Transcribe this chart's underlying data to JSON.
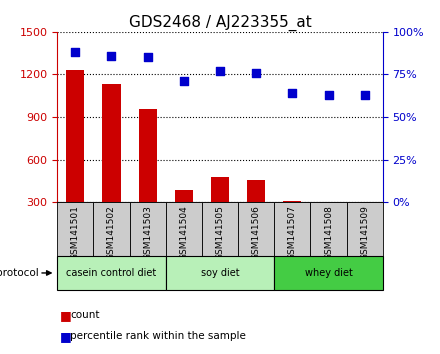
{
  "title": "GDS2468 / AJ223355_at",
  "samples": [
    "GSM141501",
    "GSM141502",
    "GSM141503",
    "GSM141504",
    "GSM141505",
    "GSM141506",
    "GSM141507",
    "GSM141508",
    "GSM141509"
  ],
  "counts": [
    1230,
    1130,
    960,
    390,
    480,
    460,
    310,
    305,
    300
  ],
  "percentile_ranks": [
    88,
    86,
    85,
    71,
    77,
    76,
    64,
    63,
    63
  ],
  "ylim_left": [
    300,
    1500
  ],
  "ylim_right": [
    0,
    100
  ],
  "yticks_left": [
    300,
    600,
    900,
    1200,
    1500
  ],
  "yticks_right": [
    0,
    25,
    50,
    75,
    100
  ],
  "bar_color": "#cc0000",
  "dot_color": "#0000cc",
  "group_spans": [
    {
      "start": 0,
      "end": 3,
      "color": "#b8f0b8",
      "label": "casein control diet"
    },
    {
      "start": 3,
      "end": 6,
      "color": "#b8f0b8",
      "label": "soy diet"
    },
    {
      "start": 6,
      "end": 9,
      "color": "#44cc44",
      "label": "whey diet"
    }
  ],
  "protocol_label": "protocol",
  "legend_count_label": "count",
  "legend_pct_label": "percentile rank within the sample",
  "bg_color": "#ffffff",
  "tick_area_color": "#cccccc",
  "title_fontsize": 11,
  "axis_fontsize": 8
}
